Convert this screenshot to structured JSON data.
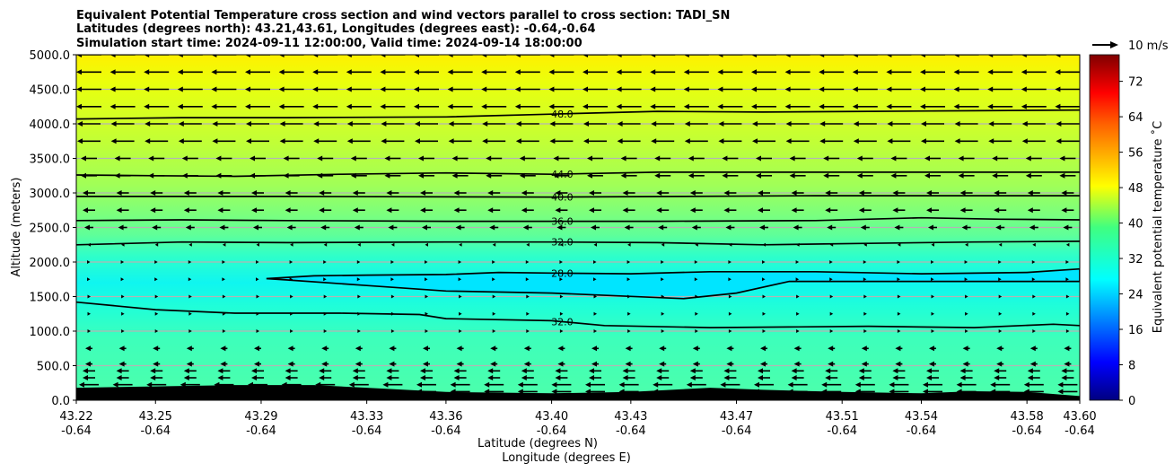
{
  "chart_data": {
    "type": "contourf-quiver",
    "title_lines": [
      "Equivalent Potential Temperature cross section and wind vectors parallel to cross section: TADI_SN",
      "Latitudes (degrees north): 43.21,43.61, Longitudes (degrees east): -0.64,-0.64",
      "Simulation start time: 2024-09-11 12:00:00, Valid time: 2024-09-14 18:00:00"
    ],
    "xlabel_line1": "Latitude (degrees N)",
    "xlabel_line2": "Longitude (degrees E)",
    "ylabel": "Altitude (meters)",
    "xlim": [
      43.22,
      43.6
    ],
    "ylim": [
      0,
      5000
    ],
    "x_ticks": [
      {
        "lat": "43.22",
        "lon": "-0.64"
      },
      {
        "lat": "43.25",
        "lon": "-0.64"
      },
      {
        "lat": "43.29",
        "lon": "-0.64"
      },
      {
        "lat": "43.33",
        "lon": "-0.64"
      },
      {
        "lat": "43.36",
        "lon": "-0.64"
      },
      {
        "lat": "43.40",
        "lon": "-0.64"
      },
      {
        "lat": "43.43",
        "lon": "-0.64"
      },
      {
        "lat": "43.47",
        "lon": "-0.64"
      },
      {
        "lat": "43.51",
        "lon": "-0.64"
      },
      {
        "lat": "43.54",
        "lon": "-0.64"
      },
      {
        "lat": "43.58",
        "lon": "-0.64"
      },
      {
        "lat": "43.60",
        "lon": "-0.64"
      }
    ],
    "y_ticks": [
      "0.0",
      "500.0",
      "1000.0",
      "1500.0",
      "2000.0",
      "2500.0",
      "3000.0",
      "3500.0",
      "4000.0",
      "4500.0",
      "5000.0"
    ],
    "y_tick_values": [
      0,
      500,
      1000,
      1500,
      2000,
      2500,
      3000,
      3500,
      4000,
      4500,
      5000
    ],
    "grid": "horizontal",
    "colorbar": {
      "label": "Equivalent potential temperature ˚C",
      "min": 0,
      "max": 78,
      "ticks": [
        "0",
        "8",
        "16",
        "24",
        "32",
        "40",
        "48",
        "56",
        "64",
        "72"
      ],
      "tick_values": [
        0,
        8,
        16,
        24,
        32,
        40,
        48,
        56,
        64,
        72
      ],
      "colormap": "jet"
    },
    "quiver_key": "10 m/s",
    "contours": [
      {
        "label": "48.0",
        "points": [
          [
            43.22,
            4070
          ],
          [
            43.26,
            4090
          ],
          [
            43.3,
            4090
          ],
          [
            43.36,
            4100
          ],
          [
            43.4,
            4140
          ],
          [
            43.44,
            4180
          ],
          [
            43.48,
            4170
          ],
          [
            43.52,
            4180
          ],
          [
            43.56,
            4190
          ],
          [
            43.6,
            4200
          ]
        ]
      },
      {
        "label": "44.0",
        "points": [
          [
            43.22,
            3260
          ],
          [
            43.25,
            3250
          ],
          [
            43.28,
            3240
          ],
          [
            43.32,
            3270
          ],
          [
            43.36,
            3290
          ],
          [
            43.4,
            3270
          ],
          [
            43.44,
            3300
          ],
          [
            43.48,
            3300
          ],
          [
            43.52,
            3300
          ],
          [
            43.56,
            3300
          ],
          [
            43.6,
            3300
          ]
        ]
      },
      {
        "label": "40.0",
        "points": [
          [
            43.22,
            2950
          ],
          [
            43.3,
            2950
          ],
          [
            43.4,
            2940
          ],
          [
            43.45,
            2950
          ],
          [
            43.5,
            2960
          ],
          [
            43.55,
            2960
          ],
          [
            43.6,
            2960
          ]
        ]
      },
      {
        "label": "36.0",
        "points": [
          [
            43.22,
            2600
          ],
          [
            43.26,
            2610
          ],
          [
            43.3,
            2600
          ],
          [
            43.36,
            2590
          ],
          [
            43.4,
            2590
          ],
          [
            43.44,
            2590
          ],
          [
            43.5,
            2600
          ],
          [
            43.54,
            2640
          ],
          [
            43.57,
            2620
          ],
          [
            43.6,
            2610
          ]
        ]
      },
      {
        "label": "32.0",
        "points": [
          [
            43.22,
            2250
          ],
          [
            43.26,
            2290
          ],
          [
            43.3,
            2280
          ],
          [
            43.36,
            2290
          ],
          [
            43.4,
            2290
          ],
          [
            43.44,
            2280
          ],
          [
            43.48,
            2250
          ],
          [
            43.52,
            2270
          ],
          [
            43.56,
            2290
          ],
          [
            43.6,
            2300
          ]
        ]
      },
      {
        "label": "28.0",
        "points": [
          [
            43.292,
            1760
          ],
          [
            43.31,
            1800
          ],
          [
            43.33,
            1810
          ],
          [
            43.36,
            1820
          ],
          [
            43.38,
            1850
          ],
          [
            43.4,
            1840
          ],
          [
            43.43,
            1830
          ],
          [
            43.46,
            1860
          ],
          [
            43.5,
            1860
          ],
          [
            43.54,
            1830
          ],
          [
            43.58,
            1850
          ],
          [
            43.6,
            1900
          ],
          [
            43.6,
            1720
          ],
          [
            43.56,
            1720
          ],
          [
            43.52,
            1720
          ],
          [
            43.49,
            1720
          ],
          [
            43.47,
            1550
          ],
          [
            43.45,
            1470
          ],
          [
            43.4,
            1550
          ],
          [
            43.36,
            1580
          ],
          [
            43.33,
            1660
          ],
          [
            43.3,
            1740
          ],
          [
            43.292,
            1760
          ]
        ]
      },
      {
        "label": "32.0",
        "points": [
          [
            43.22,
            1420
          ],
          [
            43.25,
            1310
          ],
          [
            43.28,
            1260
          ],
          [
            43.32,
            1260
          ],
          [
            43.35,
            1240
          ],
          [
            43.36,
            1180
          ],
          [
            43.4,
            1150
          ],
          [
            43.42,
            1080
          ],
          [
            43.46,
            1050
          ],
          [
            43.49,
            1060
          ],
          [
            43.52,
            1070
          ],
          [
            43.56,
            1050
          ],
          [
            43.59,
            1100
          ],
          [
            43.6,
            1080
          ]
        ]
      }
    ],
    "terrain": [
      [
        43.22,
        180
      ],
      [
        43.25,
        200
      ],
      [
        43.28,
        220
      ],
      [
        43.31,
        220
      ],
      [
        43.33,
        180
      ],
      [
        43.36,
        120
      ],
      [
        43.4,
        100
      ],
      [
        43.43,
        120
      ],
      [
        43.46,
        180
      ],
      [
        43.48,
        150
      ],
      [
        43.51,
        120
      ],
      [
        43.54,
        100
      ],
      [
        43.56,
        130
      ],
      [
        43.58,
        120
      ],
      [
        43.6,
        60
      ]
    ]
  }
}
